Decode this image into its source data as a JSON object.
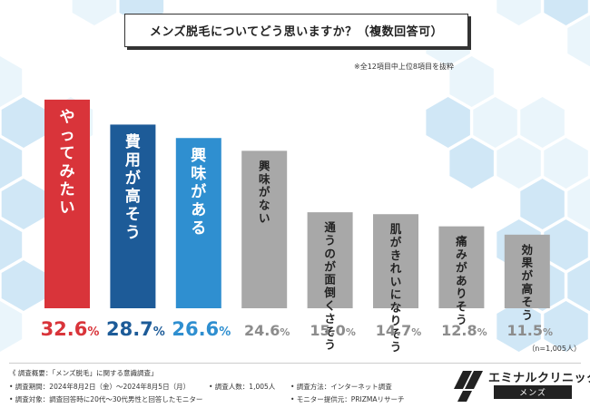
{
  "title": "メンズ脱毛についてどう思いますか？（複数回答可）",
  "note": "※全12項目中上位8項目を抜粋",
  "sample": "（n=1,005人）",
  "chart_data": {
    "type": "bar",
    "title": "メンズ脱毛についてどう思いますか？（複数回答可）",
    "categories": [
      "やってみたい",
      "費用が高そう",
      "興味がある",
      "興味がない",
      "通うのが面倒くさそう",
      "肌がきれいになりそう",
      "痛みがありそう",
      "効果が高そう"
    ],
    "values": [
      32.6,
      28.7,
      26.6,
      24.6,
      15.0,
      14.7,
      12.8,
      11.5
    ],
    "value_labels": [
      "32.6%",
      "28.7%",
      "26.6%",
      "24.6%",
      "15.0%",
      "14.7%",
      "12.8%",
      "11.5%"
    ],
    "unit": "%",
    "ylim": [
      0,
      34
    ],
    "colors": [
      "#d9343a",
      "#1d5b98",
      "#2f8fd0",
      "#a8a8a8",
      "#a8a8a8",
      "#a8a8a8",
      "#a8a8a8",
      "#a8a8a8"
    ],
    "label_colors": [
      "#d9343a",
      "#1d5b98",
      "#2f8fd0",
      "#8c8c8c",
      "#8c8c8c",
      "#8c8c8c",
      "#8c8c8c",
      "#8c8c8c"
    ]
  },
  "footer": {
    "overview": "《 調査概要：「メンズ脱毛」に関する意識調査」",
    "period": "• 調査期間：2024年8月2日（金）〜2024年8月5日（月）",
    "count": "• 調査人数：1,005人",
    "method": "• 調査方法：インターネット調査",
    "target": "• 調査対象：調査回答時に20代〜30代男性と回答したモニター",
    "provider": "• モニター提供元：PRIZMAリサーチ"
  },
  "logo": {
    "name": "エミナルクリニック",
    "sub": "メンズ"
  },
  "colors": {
    "hex_bg": "#dceef9",
    "hex_bg_dark": "#c4e1f4"
  }
}
